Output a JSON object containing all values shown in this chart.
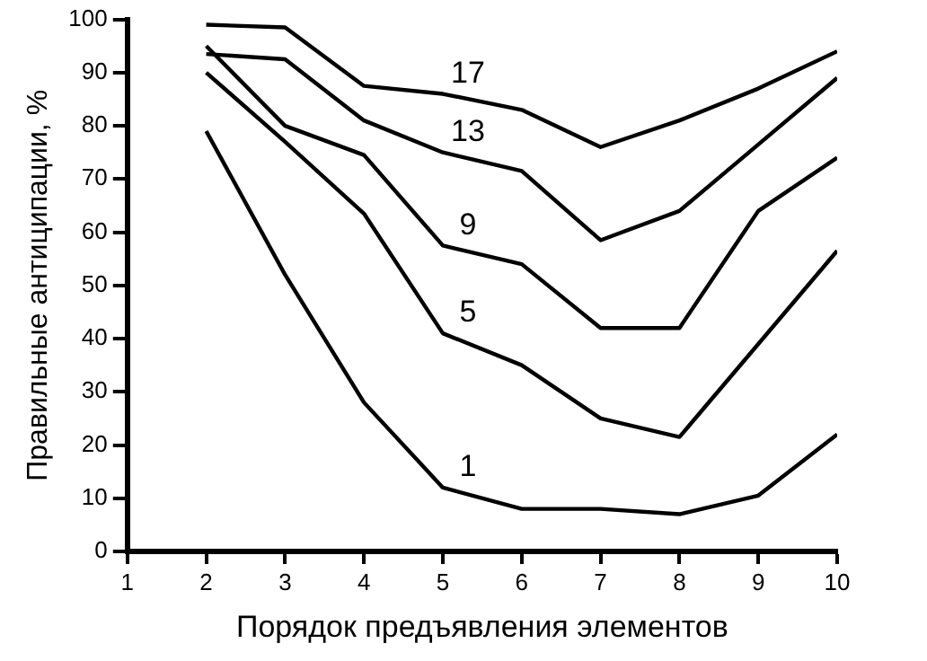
{
  "chart_data": {
    "type": "line",
    "xlabel": "Порядок предъявления элементов",
    "ylabel": "Правильные антиципации, %",
    "x": [
      2,
      3,
      4,
      5,
      6,
      7,
      8,
      9,
      10
    ],
    "series": [
      {
        "name": "17",
        "color": "#000000",
        "values": [
          99,
          98.5,
          87.5,
          86,
          83,
          76,
          81,
          87,
          94
        ]
      },
      {
        "name": "13",
        "color": "#000000",
        "values": [
          93.5,
          92.5,
          81,
          75,
          71.5,
          58.5,
          64,
          76.5,
          89
        ]
      },
      {
        "name": "9",
        "color": "#000000",
        "values": [
          95,
          80,
          74.5,
          57.5,
          54,
          42,
          42,
          64,
          74
        ]
      },
      {
        "name": "5",
        "color": "#000000",
        "values": [
          90,
          77,
          63.5,
          41,
          35,
          25,
          21.5,
          39,
          56.5
        ]
      },
      {
        "name": "1",
        "color": "#000000",
        "values": [
          79,
          52,
          28,
          12,
          8,
          8,
          7,
          10.5,
          22
        ]
      }
    ],
    "xlim": [
      1,
      10
    ],
    "xticks": [
      1,
      2,
      3,
      4,
      5,
      6,
      7,
      8,
      9,
      10
    ],
    "ylim": [
      0,
      100
    ],
    "yticks": [
      0,
      10,
      20,
      30,
      40,
      50,
      60,
      70,
      80,
      90,
      100
    ],
    "grid": false,
    "legend": false,
    "marker": "none",
    "line_style": "solid"
  }
}
